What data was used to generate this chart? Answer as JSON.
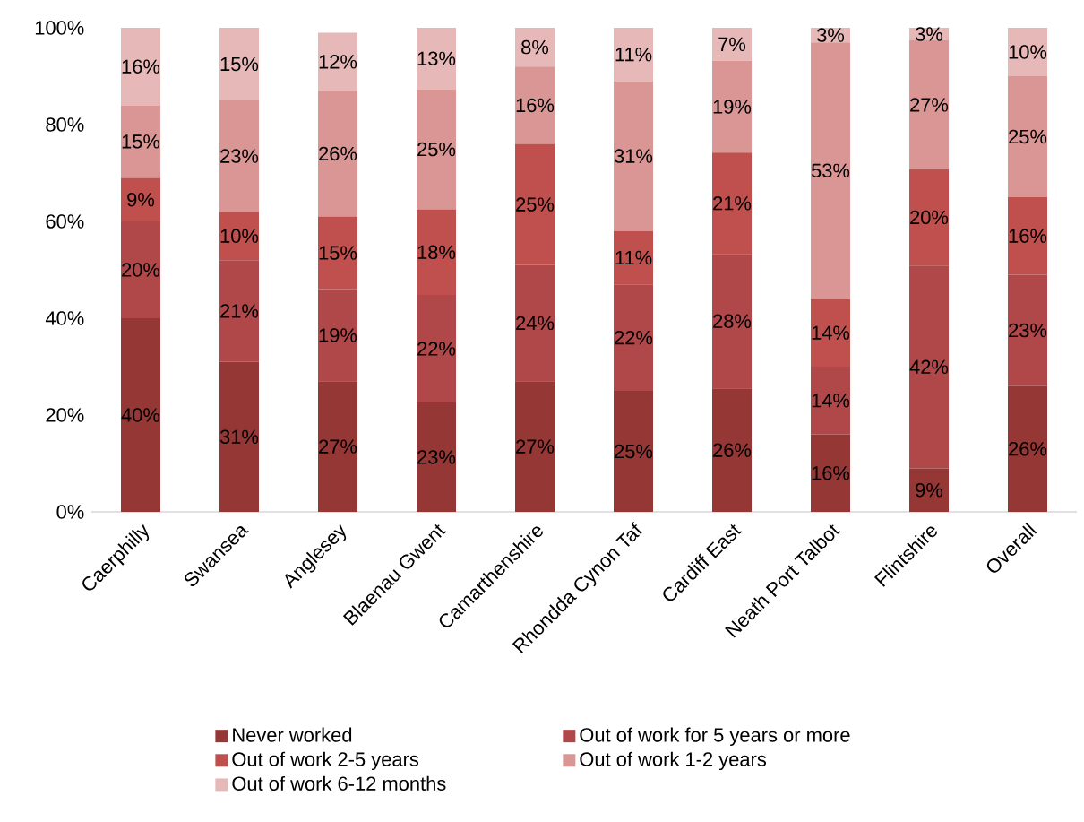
{
  "chart_data": {
    "type": "bar",
    "stacked": true,
    "legend": "bottom",
    "categories": [
      "Caerphilly",
      "Swansea",
      "Anglesey",
      "Blaenau Gwent",
      "Camarthenshire",
      "Rhondda Cynon Taf",
      "Cardiff East",
      "Neath Port Talbot",
      "Flintshire",
      "Overall"
    ],
    "series": [
      {
        "name": "Never worked",
        "color": "#953735",
        "values": [
          40,
          31,
          27,
          22.6,
          27,
          25,
          25.5,
          16,
          9.0,
          26
        ],
        "value_labels": [
          "40%",
          "31%",
          "27%",
          "23%",
          "27%",
          "25%",
          "26%",
          "16%",
          "9%",
          "26%"
        ]
      },
      {
        "name": "Out of work for 5 years or more",
        "color": "#b0484a",
        "values": [
          20,
          21,
          19,
          22.2,
          24,
          22,
          27.8,
          14,
          41.9,
          23
        ],
        "value_labels": [
          "20%",
          "21%",
          "19%",
          "22%",
          "24%",
          "22%",
          "28%",
          "14%",
          "42%",
          "23%"
        ]
      },
      {
        "name": "Out of work 2-5 years",
        "color": "#c0504d",
        "values": [
          9,
          10,
          15,
          17.7,
          25,
          11,
          20.9,
          14,
          19.9,
          16
        ],
        "value_labels": [
          "9%",
          "10%",
          "15%",
          "18%",
          "25%",
          "11%",
          "21%",
          "14%",
          "20%",
          "16%"
        ]
      },
      {
        "name": "Out of work 1-2 years",
        "color": "#d99694",
        "values": [
          15,
          23,
          26,
          24.8,
          16,
          31,
          19.0,
          53,
          26.6,
          25
        ],
        "value_labels": [
          "15%",
          "23%",
          "26%",
          "25%",
          "16%",
          "31%",
          "19%",
          "53%",
          "27%",
          "25%"
        ]
      },
      {
        "name": "Out of work 6-12 months",
        "color": "#e6b9b8",
        "values": [
          16,
          15,
          12,
          12.7,
          8,
          11,
          6.8,
          3,
          2.6,
          10
        ],
        "value_labels": [
          "16%",
          "15%",
          "12%",
          "13%",
          "8%",
          "11%",
          "7%",
          "3%",
          "3%",
          "10%"
        ]
      }
    ],
    "ylim": [
      0,
      100
    ],
    "yticks": [
      {
        "value": 0,
        "label": "0%"
      },
      {
        "value": 20,
        "label": "20%"
      },
      {
        "value": 40,
        "label": "40%"
      },
      {
        "value": 60,
        "label": "60%"
      },
      {
        "value": 80,
        "label": "80%"
      },
      {
        "value": 100,
        "label": "100%"
      }
    ]
  }
}
